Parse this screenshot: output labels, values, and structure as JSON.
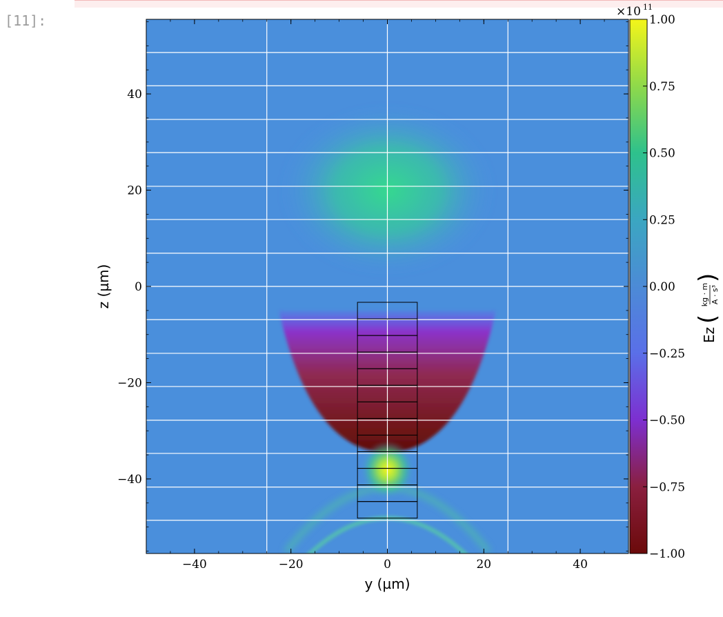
{
  "cell": {
    "prompt": "[11]:"
  },
  "colors": {
    "cell_output_bg": "#fdeeee"
  },
  "chart_data": {
    "type": "heatmap",
    "title": "",
    "xlabel": "y  (µm)",
    "ylabel": "z  (µm)",
    "xlim": [
      -50,
      50
    ],
    "ylim": [
      -55.5,
      55.5
    ],
    "x_ticks": [
      -40,
      -20,
      0,
      20,
      40
    ],
    "x_tick_labels": [
      "−40",
      "−20",
      "0",
      "20",
      "40"
    ],
    "y_ticks": [
      40,
      20,
      0,
      -20,
      -40
    ],
    "y_tick_labels": [
      "40",
      "20",
      "0",
      "−20",
      "−40"
    ],
    "grid": true,
    "grid_x": [
      -25,
      0,
      25
    ],
    "grid_z": [
      48.6,
      41.7,
      34.7,
      27.8,
      20.8,
      13.9,
      6.9,
      0,
      -6.9,
      -13.9,
      -20.8,
      -27.8,
      -34.7,
      -41.7,
      -48.6
    ],
    "field_features": [
      {
        "label": "positive lobe",
        "center": [
          0,
          20
        ],
        "radius": [
          21,
          13
        ],
        "value": 0.33
      },
      {
        "label": "negative region",
        "center": [
          0,
          -34.5
        ],
        "extent_top_z": -5,
        "half_width_top": 22.5,
        "value": -1.0
      },
      {
        "label": "peak",
        "center": [
          0,
          -35.5
        ],
        "value": 1.0
      },
      {
        "label": "arc",
        "center": [
          0,
          -35.5
        ],
        "radius": 28,
        "value": 0.45
      }
    ],
    "overlay_rects": {
      "y_range": [
        -6.2,
        6.2
      ],
      "z_edges": [
        -3.3,
        -6.75,
        -10.2,
        -13.65,
        -17.1,
        -20.55,
        -24.0,
        -27.45,
        -30.9,
        -34.35,
        -37.8,
        -41.25,
        -44.7,
        -48.15
      ]
    },
    "colorbar": {
      "label": "Ez",
      "unit_numerator": "kg · m",
      "unit_denominator": "A · s³",
      "scale_base": "×10",
      "scale_exponent": "11",
      "ticks": [
        1.0,
        0.75,
        0.5,
        0.25,
        0.0,
        -0.25,
        -0.5,
        -0.75,
        -1.0
      ],
      "tick_labels": [
        "1.00",
        "0.75",
        "0.50",
        "0.25",
        "0.00",
        "−0.25",
        "−0.50",
        "−0.75",
        "−1.00"
      ],
      "vmin": -1.0,
      "vmax": 1.0,
      "colormap": [
        "#6b0a0a",
        "#8a1f3f",
        "#7d2fd0",
        "#5a6fe8",
        "#4c8bd6",
        "#3ba6c1",
        "#2ec18c",
        "#8fd94a",
        "#f4f51a"
      ]
    }
  }
}
